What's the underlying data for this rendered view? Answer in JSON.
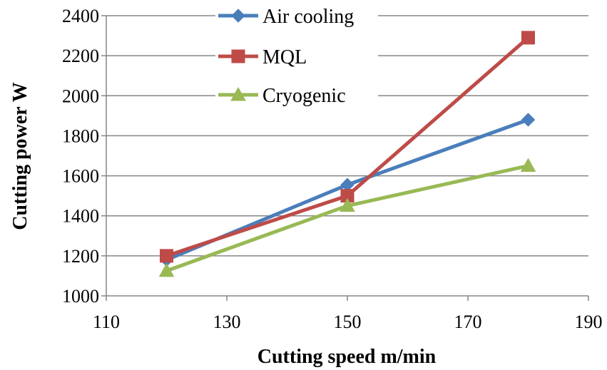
{
  "chart_data": {
    "type": "line",
    "xlabel": "Cutting speed m/min",
    "ylabel": "Cutting power W",
    "xlim": [
      110,
      190
    ],
    "ylim": [
      1000,
      2400
    ],
    "x_ticks": [
      "110",
      "130",
      "150",
      "170",
      "190"
    ],
    "y_ticks": [
      "1000",
      "1200",
      "1400",
      "1600",
      "1800",
      "2000",
      "2200",
      "2400"
    ],
    "grid": "horizontal",
    "legend_position": "top-center",
    "series": [
      {
        "name": "Air cooling",
        "x": [
          120,
          150,
          180
        ],
        "values": [
          1180,
          1555,
          1880
        ],
        "color": "#4a7ebb",
        "marker": "diamond"
      },
      {
        "name": "MQL",
        "x": [
          120,
          150,
          180
        ],
        "values": [
          1200,
          1500,
          2290
        ],
        "color": "#be4b48",
        "marker": "square"
      },
      {
        "name": "Cryogenic",
        "x": [
          120,
          150,
          180
        ],
        "values": [
          1125,
          1450,
          1650
        ],
        "color": "#98b954",
        "marker": "triangle"
      }
    ]
  }
}
